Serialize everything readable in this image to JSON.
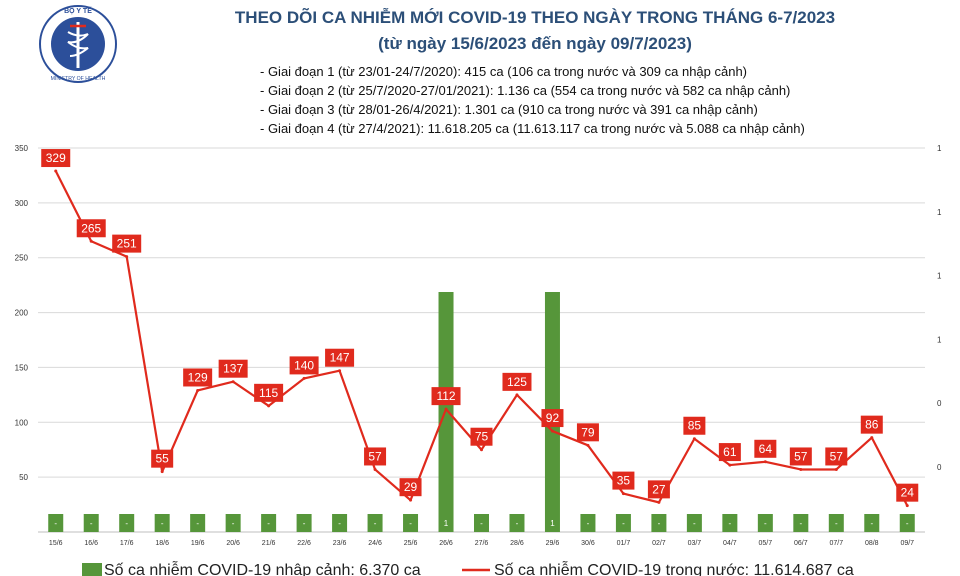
{
  "header": {
    "logo_text_top": "BỘ Y TẾ",
    "logo_text_bottom": "MINISTRY OF HEALTH",
    "title_line1": "THEO DÕI CA NHIỄM MỚI COVID-19 THEO NGÀY TRONG THÁNG 6-7/2023",
    "title_line2": "(từ ngày 15/6/2023 đến ngày 09/7/2023)",
    "notes": [
      "- Giai đoạn 1 (từ 23/01-24/7/2020): 415 ca (106 ca trong nước và 309 ca nhập cảnh)",
      "- Giai đoạn 2 (từ 25/7/2020-27/01/2021): 1.136 ca (554 ca trong nước và 582 ca nhập cảnh)",
      "- Giai đoạn 3 (từ 28/01-26/4/2021): 1.301 ca (910 ca trong nước và 391 ca nhập cảnh)",
      "- Giai đoạn 4 (từ 27/4/2021): 11.618.205 ca (11.613.117 ca trong nước và 5.088 ca nhập cảnh)"
    ]
  },
  "colors": {
    "line": "#e02a1d",
    "bar": "#56963a",
    "title": "#2c4f78",
    "grid": "#d9d9d9",
    "axis_text": "#333333"
  },
  "chart_data": {
    "type": "bar+line",
    "categories": [
      "15/6",
      "16/6",
      "17/6",
      "18/6",
      "19/6",
      "20/6",
      "21/6",
      "22/6",
      "23/6",
      "24/6",
      "25/6",
      "26/6",
      "27/6",
      "28/6",
      "29/6",
      "30/6",
      "01/7",
      "02/7",
      "03/7",
      "04/7",
      "05/7",
      "06/7",
      "07/7",
      "08/8",
      "09/7"
    ],
    "line_series": {
      "name": "Số ca nhiễm COVID-19 trong nước: 11.614.687 ca",
      "values": [
        329,
        265,
        251,
        55,
        129,
        137,
        115,
        140,
        147,
        57,
        29,
        112,
        75,
        125,
        92,
        79,
        35,
        27,
        85,
        61,
        64,
        57,
        57,
        86,
        24
      ]
    },
    "bar_series": {
      "name": "Số ca nhiễm COVID-19 nhập cảnh: 6.370 ca",
      "values": [
        0,
        0,
        0,
        0,
        0,
        0,
        0,
        0,
        0,
        0,
        0,
        1,
        0,
        0,
        1,
        0,
        0,
        0,
        0,
        0,
        0,
        0,
        0,
        0,
        0
      ],
      "labels": [
        "-",
        "-",
        "-",
        "-",
        "-",
        "-",
        "-",
        "-",
        "-",
        "-",
        "-",
        "1",
        "-",
        "-",
        "1",
        "-",
        "-",
        "-",
        "-",
        "-",
        "-",
        "-",
        "-",
        "-",
        "-"
      ]
    },
    "y_left": {
      "ticks": [
        "350",
        "300",
        "250",
        "200",
        "150",
        "100",
        "50",
        ""
      ],
      "range": [
        0,
        350
      ]
    },
    "y_right": {
      "ticks": [
        "1",
        "1",
        "1",
        "1",
        "0",
        "0"
      ]
    },
    "grid": true,
    "legend_position": "bottom"
  }
}
